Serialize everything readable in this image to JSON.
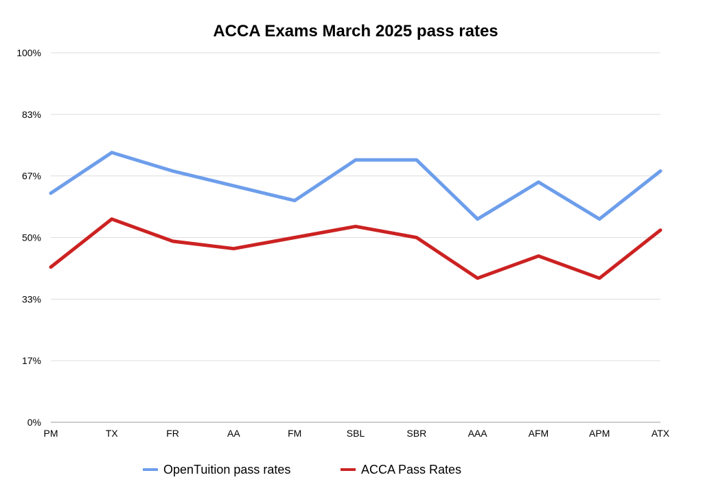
{
  "chart_data": {
    "type": "line",
    "title": "ACCA Exams March 2025 pass rates",
    "xlabel": "",
    "ylabel": "",
    "categories": [
      "PM",
      "TX",
      "FR",
      "AA",
      "FM",
      "SBL",
      "SBR",
      "AAA",
      "AFM",
      "APM",
      "ATX"
    ],
    "y_ticks": [
      "0%",
      "17%",
      "33%",
      "50%",
      "67%",
      "83%",
      "100%"
    ],
    "ylim": [
      0,
      100
    ],
    "grid": true,
    "legend_position": "bottom",
    "series": [
      {
        "name": "OpenTuition pass rates",
        "color": "#6d9eeb",
        "values": [
          62,
          73,
          68,
          64,
          60,
          71,
          71,
          55,
          65,
          55,
          68
        ]
      },
      {
        "name": "ACCA Pass Rates",
        "color": "#cc2222",
        "values": [
          42,
          55,
          49,
          47,
          50,
          53,
          50,
          39,
          45,
          39,
          52
        ]
      }
    ]
  }
}
